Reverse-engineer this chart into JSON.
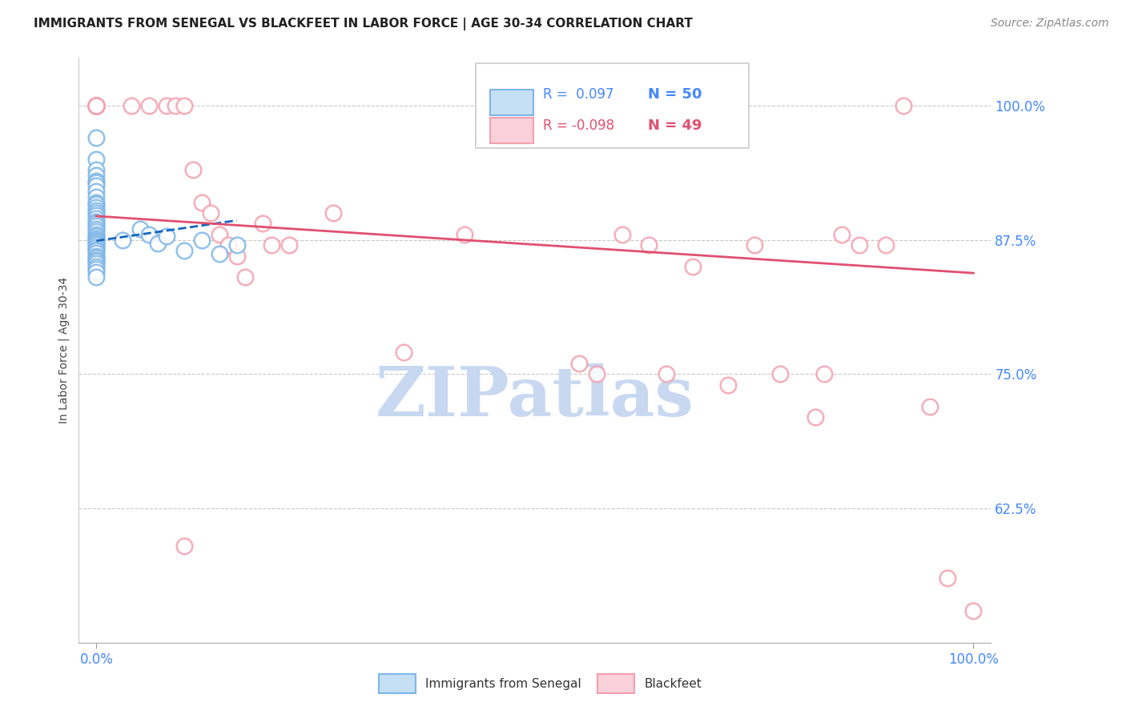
{
  "title": "IMMIGRANTS FROM SENEGAL VS BLACKFEET IN LABOR FORCE | AGE 30-34 CORRELATION CHART",
  "source": "Source: ZipAtlas.com",
  "ylabel": "In Labor Force | Age 30-34",
  "xlim": [
    -0.02,
    1.02
  ],
  "ylim": [
    0.5,
    1.045
  ],
  "yticks": [
    0.625,
    0.75,
    0.875,
    1.0
  ],
  "ytick_labels": [
    "62.5%",
    "75.0%",
    "87.5%",
    "100.0%"
  ],
  "xticks": [
    0.0,
    1.0
  ],
  "xtick_labels": [
    "0.0%",
    "100.0%"
  ],
  "legend_r_blue": "R =  0.097",
  "legend_n_blue": "N = 50",
  "legend_r_pink": "R = -0.098",
  "legend_n_pink": "N = 49",
  "blue_label": "Immigrants from Senegal",
  "pink_label": "Blackfeet",
  "watermark": "ZIPatlas",
  "blue_scatter_x": [
    0.0,
    0.0,
    0.0,
    0.0,
    0.0,
    0.0,
    0.0,
    0.0,
    0.0,
    0.0,
    0.0,
    0.0,
    0.0,
    0.0,
    0.0,
    0.0,
    0.0,
    0.0,
    0.0,
    0.0,
    0.0,
    0.0,
    0.0,
    0.0,
    0.0,
    0.0,
    0.0,
    0.0,
    0.0,
    0.0,
    0.0,
    0.0,
    0.0,
    0.0,
    0.0,
    0.0,
    0.0,
    0.0,
    0.0,
    0.0,
    0.0,
    0.03,
    0.05,
    0.06,
    0.07,
    0.08,
    0.1,
    0.12,
    0.14,
    0.16
  ],
  "blue_scatter_y": [
    0.97,
    0.95,
    0.94,
    0.935,
    0.93,
    0.928,
    0.925,
    0.92,
    0.915,
    0.91,
    0.908,
    0.905,
    0.902,
    0.9,
    0.898,
    0.895,
    0.892,
    0.89,
    0.888,
    0.885,
    0.883,
    0.88,
    0.878,
    0.876,
    0.875,
    0.873,
    0.872,
    0.87,
    0.868,
    0.866,
    0.865,
    0.863,
    0.86,
    0.858,
    0.856,
    0.855,
    0.853,
    0.85,
    0.848,
    0.845,
    0.84,
    0.875,
    0.885,
    0.88,
    0.872,
    0.878,
    0.865,
    0.875,
    0.862,
    0.87
  ],
  "pink_scatter_x": [
    0.0,
    0.0,
    0.0,
    0.0,
    0.0,
    0.0,
    0.0,
    0.0,
    0.0,
    0.0,
    0.0,
    0.0,
    0.04,
    0.06,
    0.08,
    0.09,
    0.1,
    0.11,
    0.12,
    0.13,
    0.14,
    0.15,
    0.16,
    0.17,
    0.19,
    0.2,
    0.22,
    0.27,
    0.35,
    0.42,
    0.55,
    0.57,
    0.6,
    0.63,
    0.65,
    0.68,
    0.72,
    0.75,
    0.78,
    0.82,
    0.83,
    0.85,
    0.87,
    0.9,
    0.92,
    0.95,
    0.97,
    1.0,
    0.1
  ],
  "pink_scatter_y": [
    1.0,
    1.0,
    1.0,
    1.0,
    1.0,
    1.0,
    1.0,
    1.0,
    1.0,
    1.0,
    1.0,
    1.0,
    1.0,
    1.0,
    1.0,
    1.0,
    1.0,
    0.94,
    0.91,
    0.9,
    0.88,
    0.87,
    0.86,
    0.84,
    0.89,
    0.87,
    0.87,
    0.9,
    0.77,
    0.88,
    0.76,
    0.75,
    0.88,
    0.87,
    0.75,
    0.85,
    0.74,
    0.87,
    0.75,
    0.71,
    0.75,
    0.88,
    0.87,
    0.87,
    1.0,
    0.72,
    0.56,
    0.53,
    0.59
  ],
  "blue_line_x": [
    0.0,
    0.16
  ],
  "blue_line_y": [
    0.874,
    0.893
  ],
  "pink_line_x": [
    0.0,
    1.0
  ],
  "pink_line_y": [
    0.897,
    0.844
  ],
  "blue_scatter_color": "#7EB6E8",
  "pink_scatter_color": "#F4A0B0",
  "blue_line_color": "#1565C0",
  "pink_line_color": "#E05070",
  "grid_color": "#C8C8C8",
  "background_color": "#FFFFFF",
  "title_fontsize": 11,
  "axis_label_fontsize": 10,
  "tick_fontsize": 10,
  "source_fontsize": 10,
  "watermark_color": "#C8D8F0",
  "watermark_fontsize": 62
}
